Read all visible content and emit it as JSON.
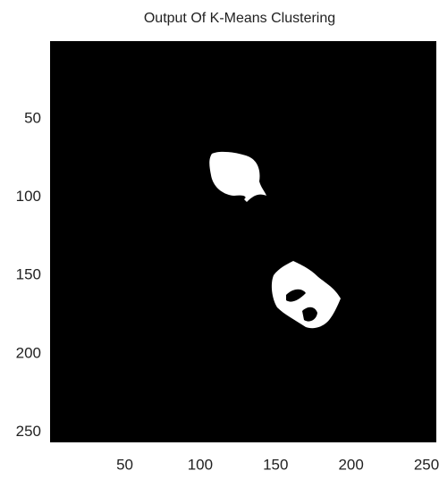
{
  "chart_data": {
    "type": "image",
    "title": "Output Of K-Means Clustering",
    "xlim": [
      0.5,
      256.5
    ],
    "ylim": [
      0.5,
      256.5
    ],
    "y_reversed": true,
    "xticks": [
      50,
      100,
      150,
      200,
      250
    ],
    "yticks": [
      50,
      100,
      150,
      200,
      250
    ],
    "background": "#000000",
    "foreground": "#ffffff"
  }
}
